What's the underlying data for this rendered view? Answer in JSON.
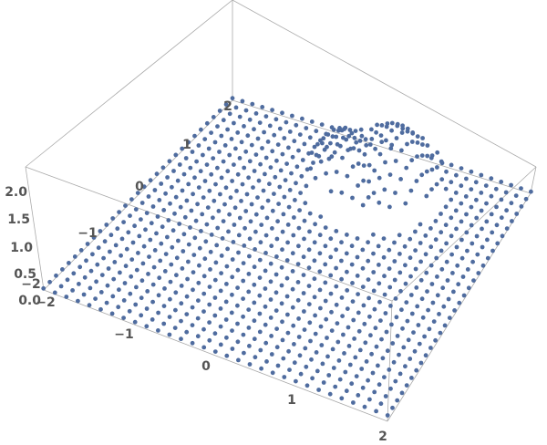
{
  "chart_data": {
    "type": "scatter3d",
    "title": "",
    "x_ticks": [
      "−2",
      "−1",
      "0",
      "1",
      "2"
    ],
    "y_ticks": [
      "−2",
      "−1",
      "0",
      "1",
      "2"
    ],
    "z_ticks": [
      "0.0",
      "0.5",
      "1.0",
      "1.5",
      "2.0"
    ],
    "x_range": [
      -2,
      2
    ],
    "y_range": [
      -2,
      2
    ],
    "z_range": [
      0,
      2.3
    ],
    "grid_points_per_axis": 31,
    "box": true,
    "point_color": "#4f6c9f",
    "axis_color": "#aaaaaa"
  }
}
